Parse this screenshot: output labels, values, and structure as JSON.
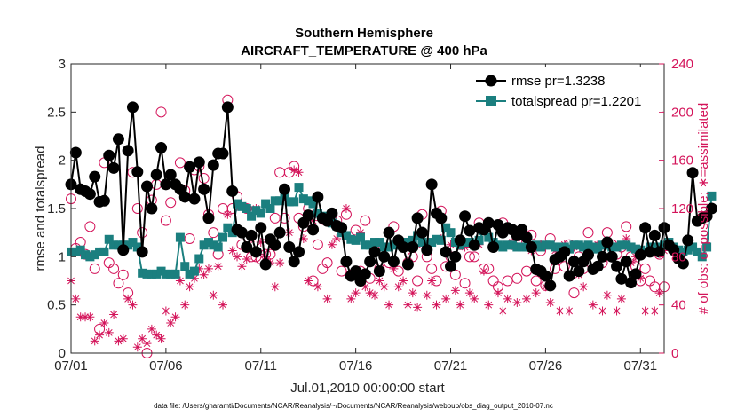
{
  "chart_data": {
    "type": "line",
    "title": "Southern Hemisphere",
    "subtitle": "AIRCRAFT_TEMPERATURE @ 400 hPa",
    "xlabel": "Jul.01,2010 00:00:00 start",
    "ylabel_left": "rmse and totalspread",
    "ylabel_right": "# of obs: o=possible; ∗=assimilated",
    "footer": "data file: /Users/gharamti/Documents/NCAR/Reanalysis/~/Documents/NCAR/Reanalysis/webpub/obs_diag_output_2010-07.nc",
    "x_ticks": [
      "07/01",
      "07/06",
      "07/11",
      "07/16",
      "07/21",
      "07/26",
      "07/31"
    ],
    "x_tick_days": [
      1,
      6,
      11,
      16,
      21,
      26,
      31
    ],
    "xlim_days": [
      1,
      32.25
    ],
    "x_step_days": 0.25,
    "ylim_left": [
      0,
      3
    ],
    "yticks_left": [
      "0",
      "0.5",
      "1",
      "1.5",
      "2",
      "2.5",
      "3"
    ],
    "ylim_right": [
      0,
      240
    ],
    "yticks_right": [
      "0",
      "40",
      "80",
      "120",
      "160",
      "200",
      "240"
    ],
    "grid": false,
    "legend_position": "top-right",
    "colors": {
      "rmse": "#000000",
      "totalspread": "#1b7f7f",
      "obs": "#d4145a"
    },
    "series": [
      {
        "name": "rmse pr=1.3238",
        "axis": "left",
        "values": [
          1.75,
          2.08,
          1.7,
          1.68,
          1.65,
          1.83,
          1.57,
          1.58,
          2.05,
          1.92,
          2.22,
          1.07,
          2.1,
          2.55,
          1.88,
          1.05,
          1.73,
          1.5,
          1.85,
          2.13,
          1.75,
          1.85,
          1.75,
          1.7,
          1.62,
          1.93,
          1.6,
          1.98,
          1.7,
          1.4,
          1.95,
          2.07,
          2.07,
          2.55,
          1.68,
          1.28,
          1.25,
          1.1,
          1.22,
          1.05,
          1.3,
          0.92,
          1.18,
          1.12,
          1.25,
          1.7,
          1.1,
          0.95,
          1.05,
          1.35,
          1.43,
          1.28,
          1.62,
          1.4,
          1.37,
          1.45,
          1.32,
          1.3,
          0.95,
          0.8,
          0.85,
          0.75,
          0.82,
          0.95,
          1.05,
          0.85,
          1.0,
          1.25,
          0.95,
          1.17,
          1.1,
          0.92,
          1.1,
          1.4,
          1.25,
          1.07,
          1.75,
          1.45,
          1.4,
          1.05,
          0.9,
          1.0,
          1.17,
          1.42,
          1.27,
          1.12,
          1.3,
          1.28,
          1.35,
          1.1,
          1.33,
          1.25,
          1.3,
          1.28,
          1.22,
          1.28,
          1.2,
          1.1,
          0.87,
          0.85,
          0.8,
          0.7,
          0.97,
          1.0,
          1.05,
          0.8,
          0.95,
          0.85,
          0.95,
          1.02,
          0.87,
          0.9,
          1.0,
          1.15,
          1.0,
          0.9,
          0.77,
          0.95,
          0.73,
          0.82,
          1.02,
          1.3,
          1.05,
          1.22,
          1.05,
          1.3,
          1.12,
          1.07,
          0.98,
          0.93,
          1.17,
          1.87,
          1.37,
          1.4,
          1.42,
          1.5
        ]
      },
      {
        "name": "totalspread pr=1.2201",
        "axis": "left",
        "values": [
          1.05,
          1.05,
          1.07,
          1.02,
          1.0,
          1.02,
          1.05,
          1.05,
          1.18,
          1.12,
          1.12,
          1.12,
          1.12,
          1.15,
          1.1,
          0.83,
          0.82,
          0.82,
          0.82,
          0.85,
          0.82,
          0.82,
          0.82,
          1.2,
          0.9,
          0.82,
          0.85,
          0.98,
          1.12,
          1.15,
          1.12,
          1.1,
          1.2,
          1.3,
          1.25,
          1.55,
          1.52,
          1.5,
          1.42,
          1.48,
          1.45,
          1.55,
          1.5,
          1.58,
          1.58,
          1.65,
          1.57,
          1.57,
          1.72,
          1.6,
          1.58,
          1.55,
          1.45,
          1.42,
          1.38,
          1.35,
          1.32,
          1.25,
          1.22,
          1.18,
          1.17,
          1.2,
          1.12,
          1.12,
          1.15,
          1.15,
          1.1,
          1.1,
          1.12,
          1.15,
          1.15,
          1.15,
          1.17,
          1.22,
          1.15,
          1.1,
          1.15,
          1.18,
          1.17,
          1.3,
          1.25,
          1.15,
          1.12,
          1.15,
          1.15,
          1.12,
          1.17,
          1.27,
          1.2,
          1.15,
          1.12,
          1.1,
          1.12,
          1.12,
          1.1,
          1.1,
          1.1,
          1.1,
          1.12,
          1.1,
          1.12,
          1.12,
          1.1,
          1.1,
          1.1,
          1.08,
          1.12,
          1.12,
          1.1,
          1.12,
          1.1,
          1.08,
          1.12,
          1.12,
          1.1,
          1.1,
          1.12,
          1.12,
          1.1,
          1.08,
          1.07,
          1.05,
          1.1,
          1.1,
          1.1,
          1.12,
          1.15,
          1.1,
          1.07,
          1.05,
          1.07,
          1.1,
          1.05,
          1.0,
          1.1,
          1.63
        ]
      },
      {
        "name": "possible",
        "axis": "right",
        "marker": "circle",
        "values": [
          128,
          87,
          92,
          82,
          105,
          70,
          20,
          158,
          75,
          70,
          58,
          65,
          50,
          150,
          120,
          100,
          0,
          127,
          140,
          200,
          110,
          125,
          140,
          158,
          135,
          95,
          152,
          155,
          145,
          115,
          100,
          82,
          120,
          210,
          120,
          130,
          90,
          120,
          80,
          80,
          78,
          82,
          82,
          112,
          150,
          112,
          150,
          155,
          112,
          105,
          120,
          60,
          90,
          70,
          75,
          110,
          110,
          68,
          115,
          65,
          102,
          68,
          110,
          62,
          90,
          70,
          80,
          75,
          105,
          68,
          90,
          75,
          80,
          60,
          115,
          80,
          70,
          60,
          118,
          72,
          80,
          65,
          90,
          58,
          80,
          80,
          108,
          70,
          70,
          60,
          55,
          108,
          60,
          90,
          62,
          98,
          68,
          98,
          60,
          85,
          56,
          95,
          70,
          80,
          72,
          90,
          50,
          80,
          70,
          100,
          70,
          88,
          75,
          100,
          90,
          82,
          88,
          105,
          80,
          72,
          60,
          70,
          60,
          55,
          82,
          55,
          80,
          78,
          98,
          60,
          70,
          50,
          125,
          100,
          105,
          95
        ]
      },
      {
        "name": "assimilated",
        "axis": "right",
        "marker": "asterisk",
        "values": [
          60,
          45,
          30,
          30,
          30,
          10,
          15,
          25,
          17,
          32,
          10,
          12,
          45,
          40,
          5,
          12,
          8,
          20,
          15,
          12,
          35,
          25,
          30,
          60,
          40,
          55,
          62,
          70,
          65,
          70,
          48,
          72,
          40,
          115,
          85,
          80,
          72,
          78,
          95,
          120,
          92,
          80,
          75,
          55,
          75,
          130,
          100,
          152,
          150,
          95,
          60,
          110,
          55,
          110,
          45,
          90,
          95,
          100,
          120,
          45,
          50,
          100,
          55,
          50,
          48,
          60,
          55,
          40,
          70,
          55,
          60,
          40,
          50,
          38,
          90,
          48,
          60,
          40,
          95,
          45,
          90,
          52,
          40,
          88,
          50,
          45,
          90,
          68,
          40,
          90,
          50,
          35,
          45,
          92,
          42,
          95,
          45,
          85,
          50,
          90,
          55,
          42,
          85,
          35,
          90,
          35,
          88,
          65,
          55,
          88,
          40,
          90,
          35,
          48,
          80,
          35,
          45,
          95,
          75,
          80,
          62,
          35,
          85,
          35,
          50,
          85,
          40,
          35,
          80,
          50,
          35,
          38,
          125,
          100,
          65,
          35
        ]
      }
    ]
  }
}
